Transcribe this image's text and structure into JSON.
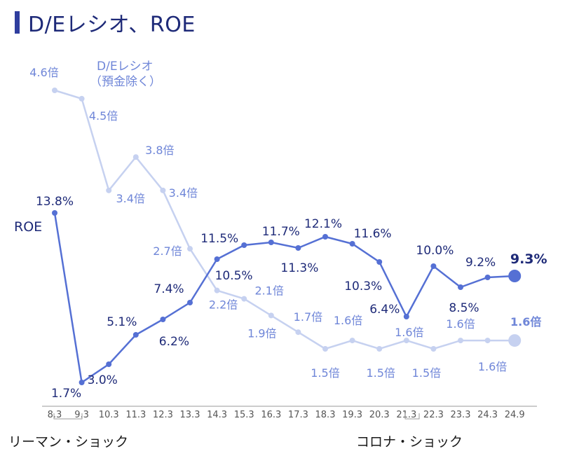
{
  "header": {
    "title": "D/Eレシオ、ROE"
  },
  "chart_data": {
    "type": "line",
    "categories": [
      "8.3",
      "9.3",
      "10.3",
      "11.3",
      "12.3",
      "13.3",
      "14.3",
      "15.3",
      "16.3",
      "17.3",
      "18.3",
      "19.3",
      "20.3",
      "21.3",
      "22.3",
      "23.3",
      "24.3",
      "24.9"
    ],
    "series": [
      {
        "name": "ROE",
        "unit": "%",
        "values": [
          13.8,
          1.7,
          3.0,
          5.1,
          6.2,
          7.4,
          10.5,
          11.5,
          11.7,
          11.3,
          12.1,
          11.6,
          10.3,
          6.4,
          10.0,
          8.5,
          9.2,
          9.3
        ],
        "labels": [
          "13.8%",
          "1.7%",
          "3.0%",
          "5.1%",
          "6.2%",
          "7.4%",
          "10.5%",
          "11.5%",
          "11.7%",
          "11.3%",
          "12.1%",
          "11.6%",
          "10.3%",
          "6.4%",
          "10.0%",
          "8.5%",
          "9.2%",
          "9.3%"
        ],
        "color": "#5570d4"
      },
      {
        "name": "D/Eレシオ（預金除く）",
        "unit": "倍",
        "values": [
          4.6,
          4.5,
          3.4,
          3.8,
          3.4,
          2.7,
          2.2,
          2.1,
          1.9,
          1.7,
          1.5,
          1.6,
          1.5,
          1.6,
          1.5,
          1.6,
          1.6,
          1.6
        ],
        "labels": [
          "4.6倍",
          "4.5倍",
          "3.4倍",
          "3.8倍",
          "3.4倍",
          "2.7倍",
          "2.2倍",
          "2.1倍",
          "1.9倍",
          "1.7倍",
          "1.5倍",
          "1.6倍",
          "1.5倍",
          "1.6倍",
          "1.5倍",
          "1.6倍",
          "1.6倍",
          "1.6倍"
        ],
        "color": "#c6d1f0"
      }
    ],
    "series_labels": {
      "roe": "ROE",
      "de_line1": "D/Eレシオ",
      "de_line2": "（預金除く）"
    },
    "annotations": [
      {
        "text": "リーマン・ショック",
        "span": [
          "8.3",
          "9.3"
        ]
      },
      {
        "text": "コロナ・ショック",
        "span": [
          "21.3",
          "21.3"
        ]
      }
    ],
    "colors": {
      "dark_text": "#1e2a78",
      "light_text": "#6f86d8",
      "axis": "#9a9a9a",
      "tick_text": "#555555"
    }
  }
}
